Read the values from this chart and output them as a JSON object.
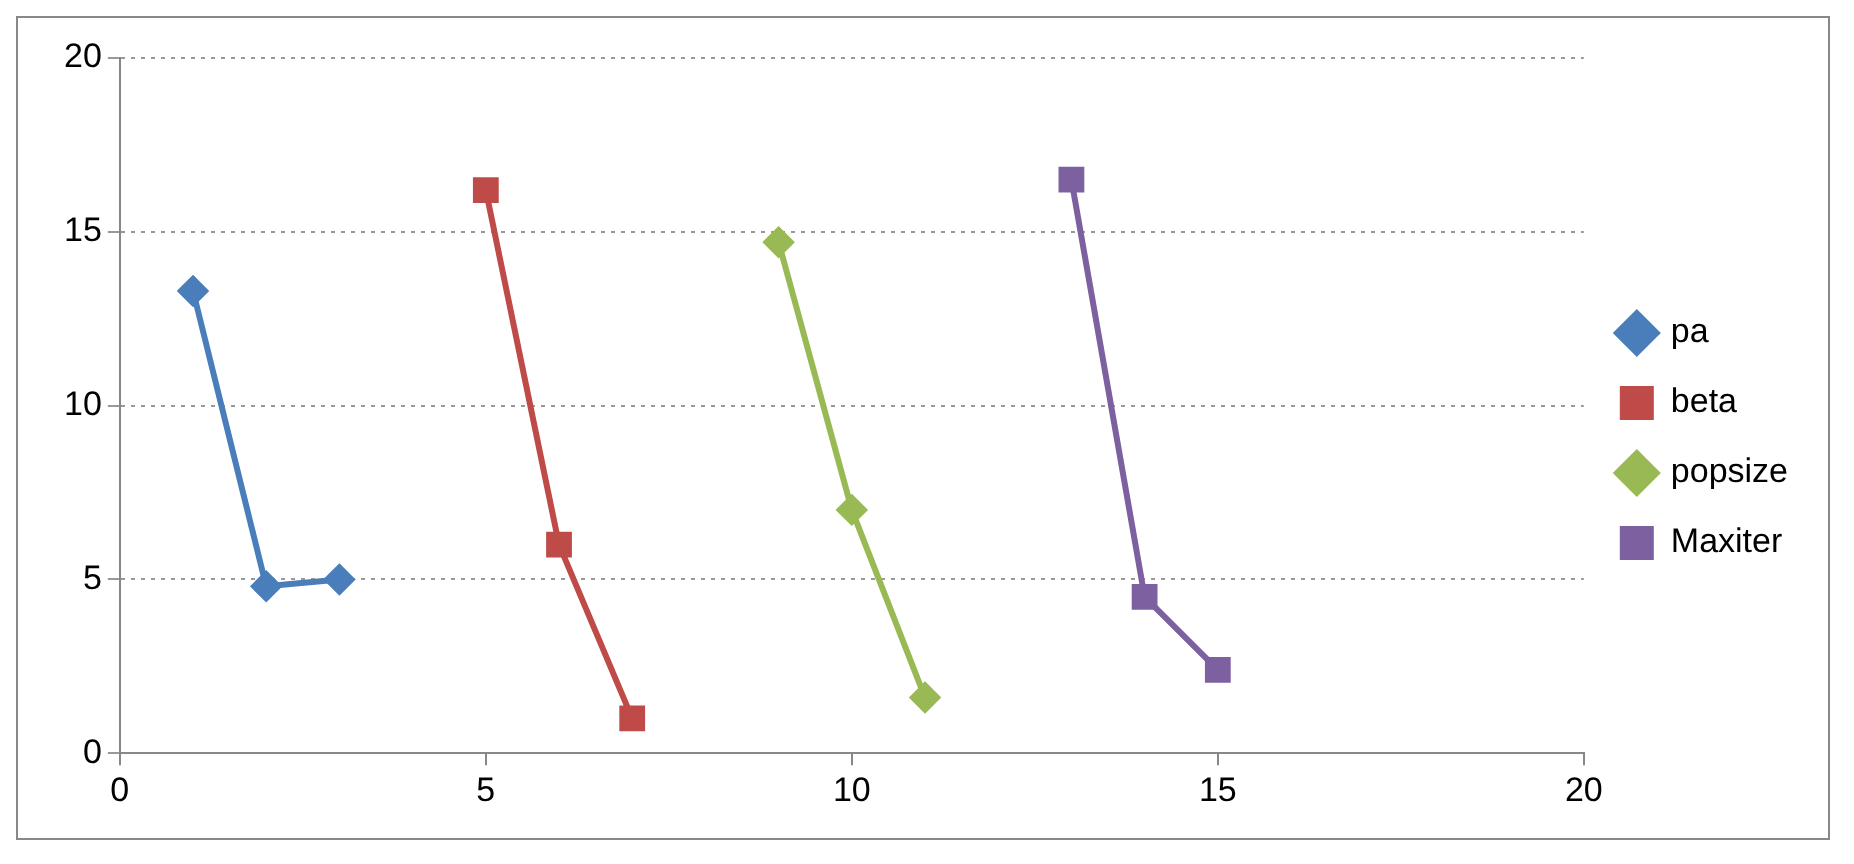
{
  "chart_data": {
    "type": "line",
    "xlim": [
      0,
      20
    ],
    "xticks": [
      0,
      5,
      10,
      15,
      20
    ],
    "ylim": [
      0,
      20
    ],
    "yticks": [
      0,
      5,
      10,
      15,
      20
    ],
    "grid": "y",
    "legend": "right",
    "series": [
      {
        "name": "pa",
        "color": "#4a7ebb",
        "marker": "diamond",
        "x": [
          1,
          2,
          3
        ],
        "values": [
          13.3,
          4.8,
          5.0
        ]
      },
      {
        "name": "beta",
        "color": "#be4b48",
        "marker": "square",
        "x": [
          5,
          6,
          7
        ],
        "values": [
          16.2,
          6.0,
          1.0
        ]
      },
      {
        "name": "popsize",
        "color": "#98b954",
        "marker": "diamond",
        "x": [
          9,
          10,
          11
        ],
        "values": [
          14.7,
          7.0,
          1.6
        ]
      },
      {
        "name": "Maxiter",
        "color": "#7d60a0",
        "marker": "square",
        "x": [
          13,
          14,
          15
        ],
        "values": [
          16.5,
          4.5,
          2.4
        ]
      }
    ]
  }
}
